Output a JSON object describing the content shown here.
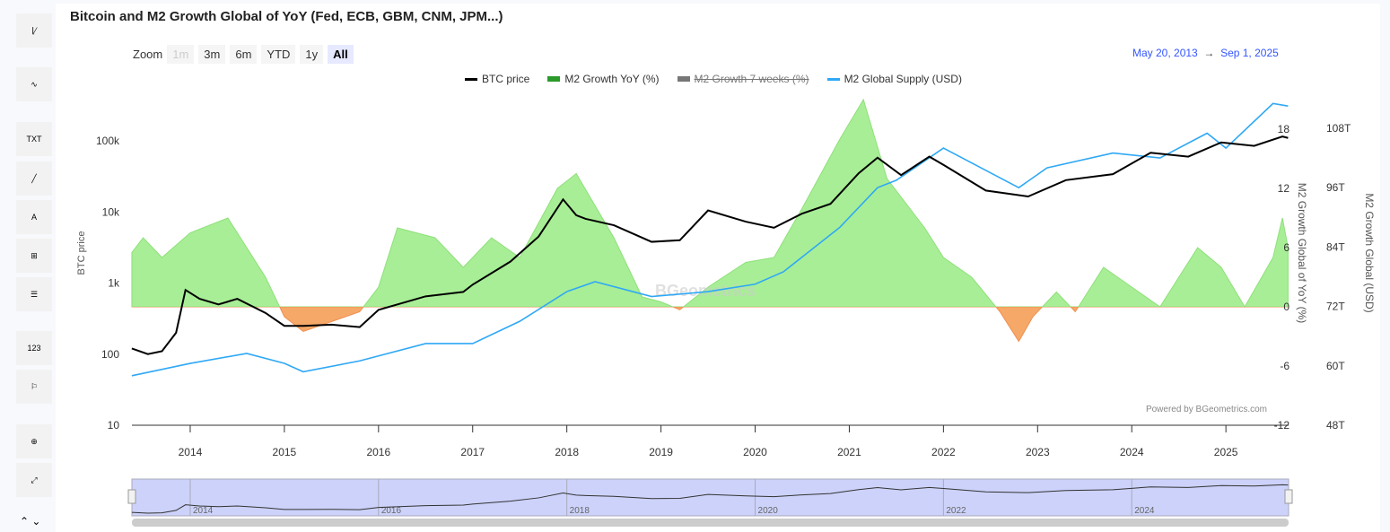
{
  "title": "Bitcoin and M2 Growth Global of YoY (Fed, ECB, GBM, CNM, JPM...)",
  "toolbar": {
    "txt": "TXT",
    "num": "123",
    "a": "A",
    "zero": "0",
    "b": "B"
  },
  "zoom": {
    "label": "Zoom",
    "buttons": [
      "1m",
      "3m",
      "6m",
      "YTD",
      "1y",
      "All"
    ],
    "selected": "All",
    "disabled": "1m"
  },
  "range": {
    "from": "May 20, 2013",
    "arrow": "→",
    "to": "Sep 1, 2025"
  },
  "credits": "Powered by BGeometrics.com",
  "watermark": "BGeometrics",
  "chart_data": {
    "type": "line",
    "title": "Bitcoin and M2 Growth Global of YoY (Fed, ECB, GBM, CNM, JPM...)",
    "x_range": [
      "2013-05-20",
      "2025-09-01"
    ],
    "x_ticks": [
      "2014",
      "2015",
      "2016",
      "2017",
      "2018",
      "2019",
      "2020",
      "2021",
      "2022",
      "2023",
      "2024",
      "2025"
    ],
    "navigator_ticks": [
      "2014",
      "2016",
      "2018",
      "2020",
      "2022",
      "2024"
    ],
    "y_left": {
      "label": "BTC price",
      "scale": "log",
      "range": [
        10,
        200000
      ],
      "ticks": [
        "10",
        "100",
        "1k",
        "10k",
        "100k"
      ]
    },
    "y_right1": {
      "label": "M2 Growth Global of YoY (%)",
      "range": [
        -12,
        18
      ],
      "ticks": [
        "-12",
        "-6",
        "0",
        "6",
        "12",
        "18"
      ]
    },
    "y_right2": {
      "label": "M2 Growth Global (USD)",
      "range": [
        48,
        108
      ],
      "ticks": [
        "48T",
        "60T",
        "72T",
        "84T",
        "96T",
        "108T"
      ]
    },
    "legend": "top-center",
    "colors": {
      "btc": "#000000",
      "m2_pos": "#a8ee96",
      "m2_pos_line": "#8ee07a",
      "m2_neg": "#f6a868",
      "supply": "#2fa8f5"
    },
    "series": [
      {
        "name": "BTC price",
        "axis": "left",
        "x": [
          2013.38,
          2013.55,
          2013.7,
          2013.85,
          2013.95,
          2014.1,
          2014.3,
          2014.5,
          2014.8,
          2015.0,
          2015.2,
          2015.5,
          2015.8,
          2016.0,
          2016.5,
          2016.9,
          2017.0,
          2017.4,
          2017.7,
          2017.96,
          2018.1,
          2018.2,
          2018.5,
          2018.9,
          2019.2,
          2019.5,
          2019.9,
          2020.2,
          2020.5,
          2020.8,
          2021.1,
          2021.3,
          2021.55,
          2021.85,
          2022.0,
          2022.45,
          2022.9,
          2023.3,
          2023.8,
          2024.2,
          2024.6,
          2024.95,
          2025.3,
          2025.6,
          2025.66
        ],
        "values": [
          120,
          100,
          110,
          200,
          800,
          600,
          500,
          600,
          380,
          250,
          250,
          260,
          240,
          420,
          650,
          750,
          950,
          2000,
          4500,
          15000,
          9000,
          8000,
          6500,
          3800,
          4000,
          10500,
          7300,
          6000,
          9500,
          13000,
          35000,
          58000,
          33000,
          60000,
          46000,
          20000,
          16500,
          28000,
          34000,
          68000,
          60000,
          95000,
          85000,
          115000,
          110000
        ]
      },
      {
        "name": "M2 Growth YoY (%)",
        "axis": "right1",
        "x": [
          2013.38,
          2013.5,
          2013.7,
          2014.0,
          2014.4,
          2014.8,
          2015.0,
          2015.2,
          2015.5,
          2015.8,
          2016.0,
          2016.2,
          2016.6,
          2016.9,
          2017.2,
          2017.5,
          2017.9,
          2018.1,
          2018.5,
          2018.8,
          2019.0,
          2019.2,
          2019.5,
          2019.9,
          2020.2,
          2020.5,
          2020.9,
          2021.15,
          2021.4,
          2021.8,
          2022.0,
          2022.3,
          2022.6,
          2022.8,
          2022.95,
          2023.2,
          2023.4,
          2023.7,
          2024.0,
          2024.3,
          2024.7,
          2024.95,
          2025.2,
          2025.5,
          2025.6,
          2025.66
        ],
        "values": [
          5.5,
          7,
          5,
          7.5,
          9,
          3,
          -1,
          -2.5,
          -1.5,
          -0.5,
          2,
          8,
          7,
          4,
          7,
          5,
          12,
          13.5,
          7,
          1,
          0.5,
          -0.3,
          2,
          4.5,
          5,
          10,
          17,
          21,
          13,
          8,
          5,
          3,
          -0.5,
          -3.5,
          -1,
          1.5,
          -0.5,
          4,
          2,
          0,
          6,
          4,
          0,
          5,
          9,
          6
        ]
      },
      {
        "name": "M2 Growth 7 weeks (%)",
        "axis": "right1",
        "hidden": true,
        "x": [],
        "values": []
      },
      {
        "name": "M2 Global Supply (USD)",
        "axis": "right2",
        "x": [
          2013.38,
          2014.0,
          2014.6,
          2015.0,
          2015.2,
          2015.8,
          2016.5,
          2017.0,
          2017.5,
          2018.0,
          2018.3,
          2018.9,
          2019.5,
          2020.0,
          2020.3,
          2020.9,
          2021.3,
          2021.5,
          2022.0,
          2022.6,
          2022.8,
          2023.1,
          2023.8,
          2024.3,
          2024.8,
          2025.0,
          2025.5,
          2025.66
        ],
        "values": [
          58,
          60.5,
          62.5,
          60.5,
          58.8,
          61,
          64.5,
          64.5,
          69,
          75,
          77,
          74,
          75,
          76.5,
          79,
          88,
          96,
          97.5,
          104,
          98,
          96,
          100,
          103,
          102,
          107,
          104,
          113,
          112.5
        ]
      }
    ]
  }
}
